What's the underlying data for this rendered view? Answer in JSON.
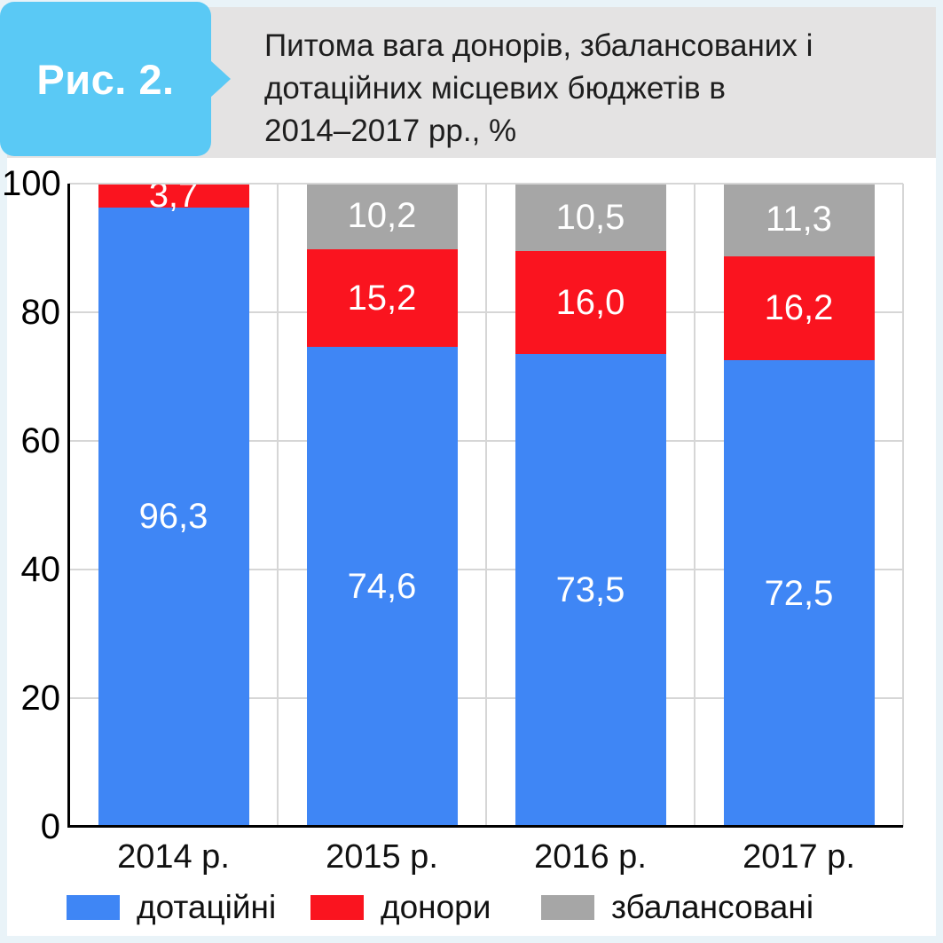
{
  "page": {
    "figure_label": "Рис. 2.",
    "title": "Питома вага донорів, збалансованих і дотаційних місцевих бюджетів в 2014–2017 рр., %",
    "title_lines": [
      "Питома вага донорів, збалансованих і",
      "дотаційних місцевих бюджетів в",
      "2014–2017 рр., %"
    ]
  },
  "colors": {
    "subsidized_blue": "#3f86f5",
    "donors_red": "#fa141f",
    "balanced_gray": "#a6a6a6",
    "ribbon_blue": "#5ac9f5",
    "header_bg": "#e4e3e3",
    "page_bg": "#e9f3f8",
    "chart_bg": "#ffffff",
    "gridline": "#d6d6d6",
    "axis": "#000000",
    "value_label": "#ffffff"
  },
  "chart_data": {
    "type": "bar",
    "stacked": true,
    "title": "Питома вага донорів, збалансованих і дотаційних місцевих бюджетів в 2014–2017 рр., %",
    "categories": [
      "2014 р.",
      "2015 р.",
      "2016 р.",
      "2017 р."
    ],
    "series": [
      {
        "name": "дотаційні",
        "color": "#3f86f5",
        "values": [
          96.3,
          74.6,
          73.5,
          72.5
        ],
        "labels": [
          "96,3",
          "74,6",
          "73,5",
          "72,5"
        ]
      },
      {
        "name": "донори",
        "color": "#fa141f",
        "values": [
          3.7,
          15.2,
          16.0,
          16.2
        ],
        "labels": [
          "3,7",
          "15,2",
          "16,0",
          "16,2"
        ]
      },
      {
        "name": "збалансовані",
        "color": "#a6a6a6",
        "values": [
          null,
          10.2,
          10.5,
          11.3
        ],
        "labels": [
          "",
          "10,2",
          "10,5",
          "11,3"
        ]
      }
    ],
    "xlabel": "",
    "ylabel": "",
    "ylim": [
      0,
      100
    ],
    "y_ticks": [
      0,
      20,
      40,
      60,
      80,
      100
    ],
    "grid": true,
    "legend_position": "bottom",
    "value_decimal_separator": ","
  },
  "legend": {
    "items": [
      {
        "label": "дотаційні",
        "color": "#3f86f5"
      },
      {
        "label": "донори",
        "color": "#fa141f"
      },
      {
        "label": "збалансовані",
        "color": "#a6a6a6"
      }
    ]
  }
}
